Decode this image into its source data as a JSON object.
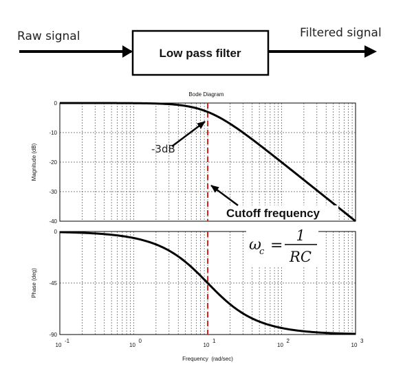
{
  "block": {
    "input_label": "Raw signal",
    "box_label": "Low pass filter",
    "output_label": "Filtered signal"
  },
  "bode": {
    "title": "Bode Diagram",
    "xlabel": "Frequency  (rad/sec)",
    "mag_ylabel": "Magnitude (dB)",
    "phase_ylabel": "Phase (deg)",
    "mag_ticks": [
      "0",
      "-10",
      "-20",
      "-30",
      "-40"
    ],
    "phase_ticks": [
      "0",
      "-45",
      "-90"
    ],
    "x_ticks": [
      {
        "base": "10",
        "exp": "-1"
      },
      {
        "base": "10",
        "exp": "0"
      },
      {
        "base": "10",
        "exp": "1"
      },
      {
        "base": "10",
        "exp": "2"
      },
      {
        "base": "10",
        "exp": "3"
      }
    ],
    "annotation_3db": "-3dB",
    "annotation_cutoff": "Cutoff frequency",
    "formula": {
      "lhs": "ω",
      "sub": "c",
      "eq": "=",
      "num": "1",
      "den": "RC"
    }
  },
  "chart_data": {
    "type": "line",
    "title": "Bode Diagram",
    "xlabel": "Frequency  (rad/sec)",
    "xscale": "log",
    "xlim": [
      0.1,
      1000
    ],
    "cutoff_frequency": 10,
    "panels": [
      {
        "ylabel": "Magnitude (dB)",
        "ylim": [
          -40,
          0
        ],
        "yticks": [
          0,
          -10,
          -20,
          -30,
          -40
        ],
        "x": [
          0.1,
          1,
          3,
          10,
          30,
          100,
          1000
        ],
        "y": [
          0,
          -0.04,
          -0.4,
          -3,
          -10,
          -20,
          -40
        ]
      },
      {
        "ylabel": "Phase (deg)",
        "ylim": [
          -90,
          0
        ],
        "yticks": [
          0,
          -45,
          -90
        ],
        "x": [
          0.1,
          1,
          3,
          10,
          30,
          100,
          1000
        ],
        "y": [
          -0.6,
          -5.7,
          -16.7,
          -45,
          -71.6,
          -84.3,
          -89.4
        ]
      }
    ],
    "grid": true,
    "colors": {
      "curve": "#000000",
      "cutoff_line": "#e0201e"
    }
  }
}
